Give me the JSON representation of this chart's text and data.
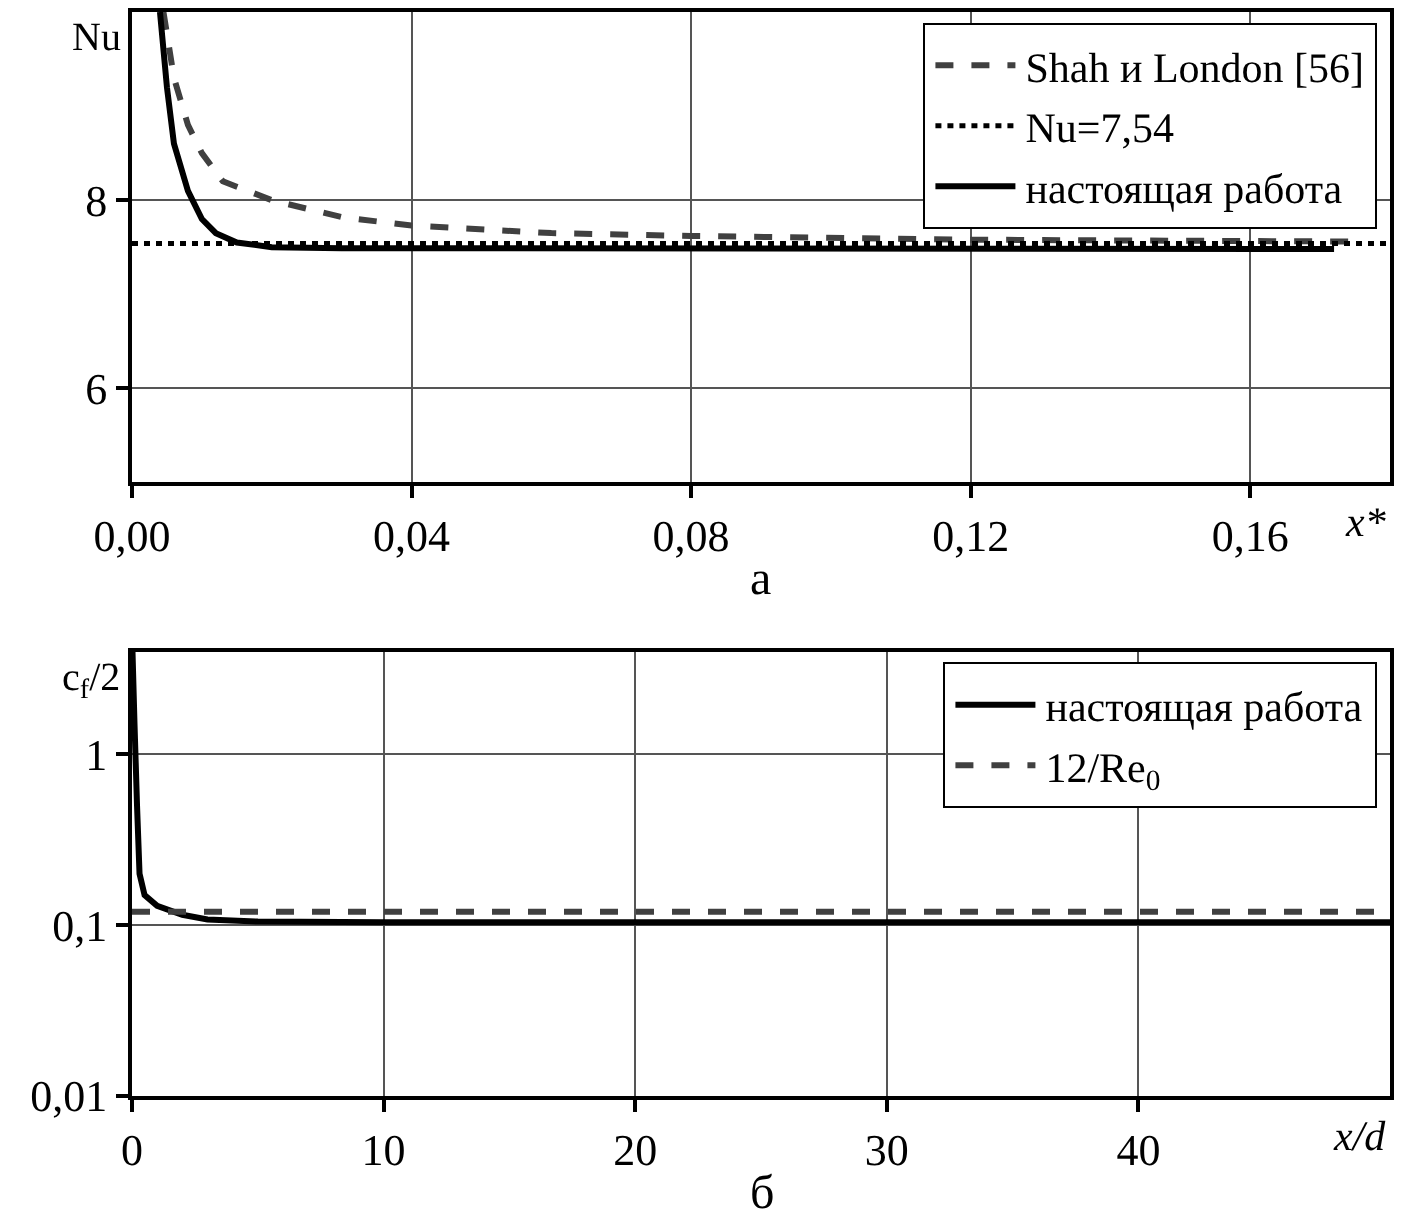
{
  "chart_data": [
    {
      "type": "line",
      "xlabel": "x*",
      "ylabel": "Nu",
      "annotations": [
        "а"
      ],
      "xlim": [
        0,
        0.18
      ],
      "ylim": [
        5,
        10
      ],
      "xticks": [
        {
          "value": 0,
          "label": "0,00"
        },
        {
          "value": 0.04,
          "label": "0,04"
        },
        {
          "value": 0.08,
          "label": "0,08"
        },
        {
          "value": 0.12,
          "label": "0,12"
        },
        {
          "value": 0.16,
          "label": "0,16"
        }
      ],
      "yticks": [
        6,
        8
      ],
      "grid": true,
      "legend": "top right",
      "series": [
        {
          "name": "Shah и London [56]",
          "color": "#404040",
          "line_style": "dashed",
          "x": [
            0.0045,
            0.006,
            0.008,
            0.01,
            0.013,
            0.02,
            0.03,
            0.04,
            0.06,
            0.08,
            0.12,
            0.175
          ],
          "values": [
            10,
            9.3,
            8.8,
            8.5,
            8.2,
            8.0,
            7.82,
            7.73,
            7.65,
            7.62,
            7.58,
            7.56
          ]
        },
        {
          "name": "Nu=7,54",
          "color": "#000000",
          "line_style": "dotted",
          "x": [
            0,
            0.18
          ],
          "values": [
            7.54,
            7.54
          ]
        },
        {
          "name": "настоящая работа",
          "color": "#000000",
          "line_style": "solid",
          "x": [
            0.004,
            0.005,
            0.006,
            0.008,
            0.01,
            0.012,
            0.015,
            0.02,
            0.03,
            0.172
          ],
          "values": [
            10,
            9.2,
            8.6,
            8.1,
            7.8,
            7.65,
            7.55,
            7.5,
            7.49,
            7.48
          ]
        }
      ]
    },
    {
      "type": "line",
      "xlabel": "x/d",
      "ylabel": "c$_{f}$/2",
      "annotations": [
        "б"
      ],
      "log": "y",
      "xlim": [
        0,
        50
      ],
      "ylim": [
        0.01,
        4
      ],
      "xticks": [
        0,
        10,
        20,
        30,
        40
      ],
      "yticks": [
        {
          "value": 0.01,
          "label": "0,01"
        },
        {
          "value": 0.1,
          "label": "0,1"
        },
        1
      ],
      "grid": true,
      "legend": "top right",
      "series": [
        {
          "name": "настоящая работа",
          "color": "#000000",
          "line_style": "solid",
          "x": [
            0.02,
            0.1,
            0.2,
            0.3,
            0.5,
            1,
            2,
            3,
            5,
            10,
            50
          ],
          "values": [
            4,
            1.5,
            0.5,
            0.2,
            0.15,
            0.13,
            0.115,
            0.108,
            0.105,
            0.104,
            0.104
          ]
        },
        {
          "name": "12/Re$_{0}$",
          "color": "#404040",
          "line_style": "dashed",
          "x": [
            0,
            50
          ],
          "values": [
            0.12,
            0.12
          ]
        }
      ]
    }
  ]
}
